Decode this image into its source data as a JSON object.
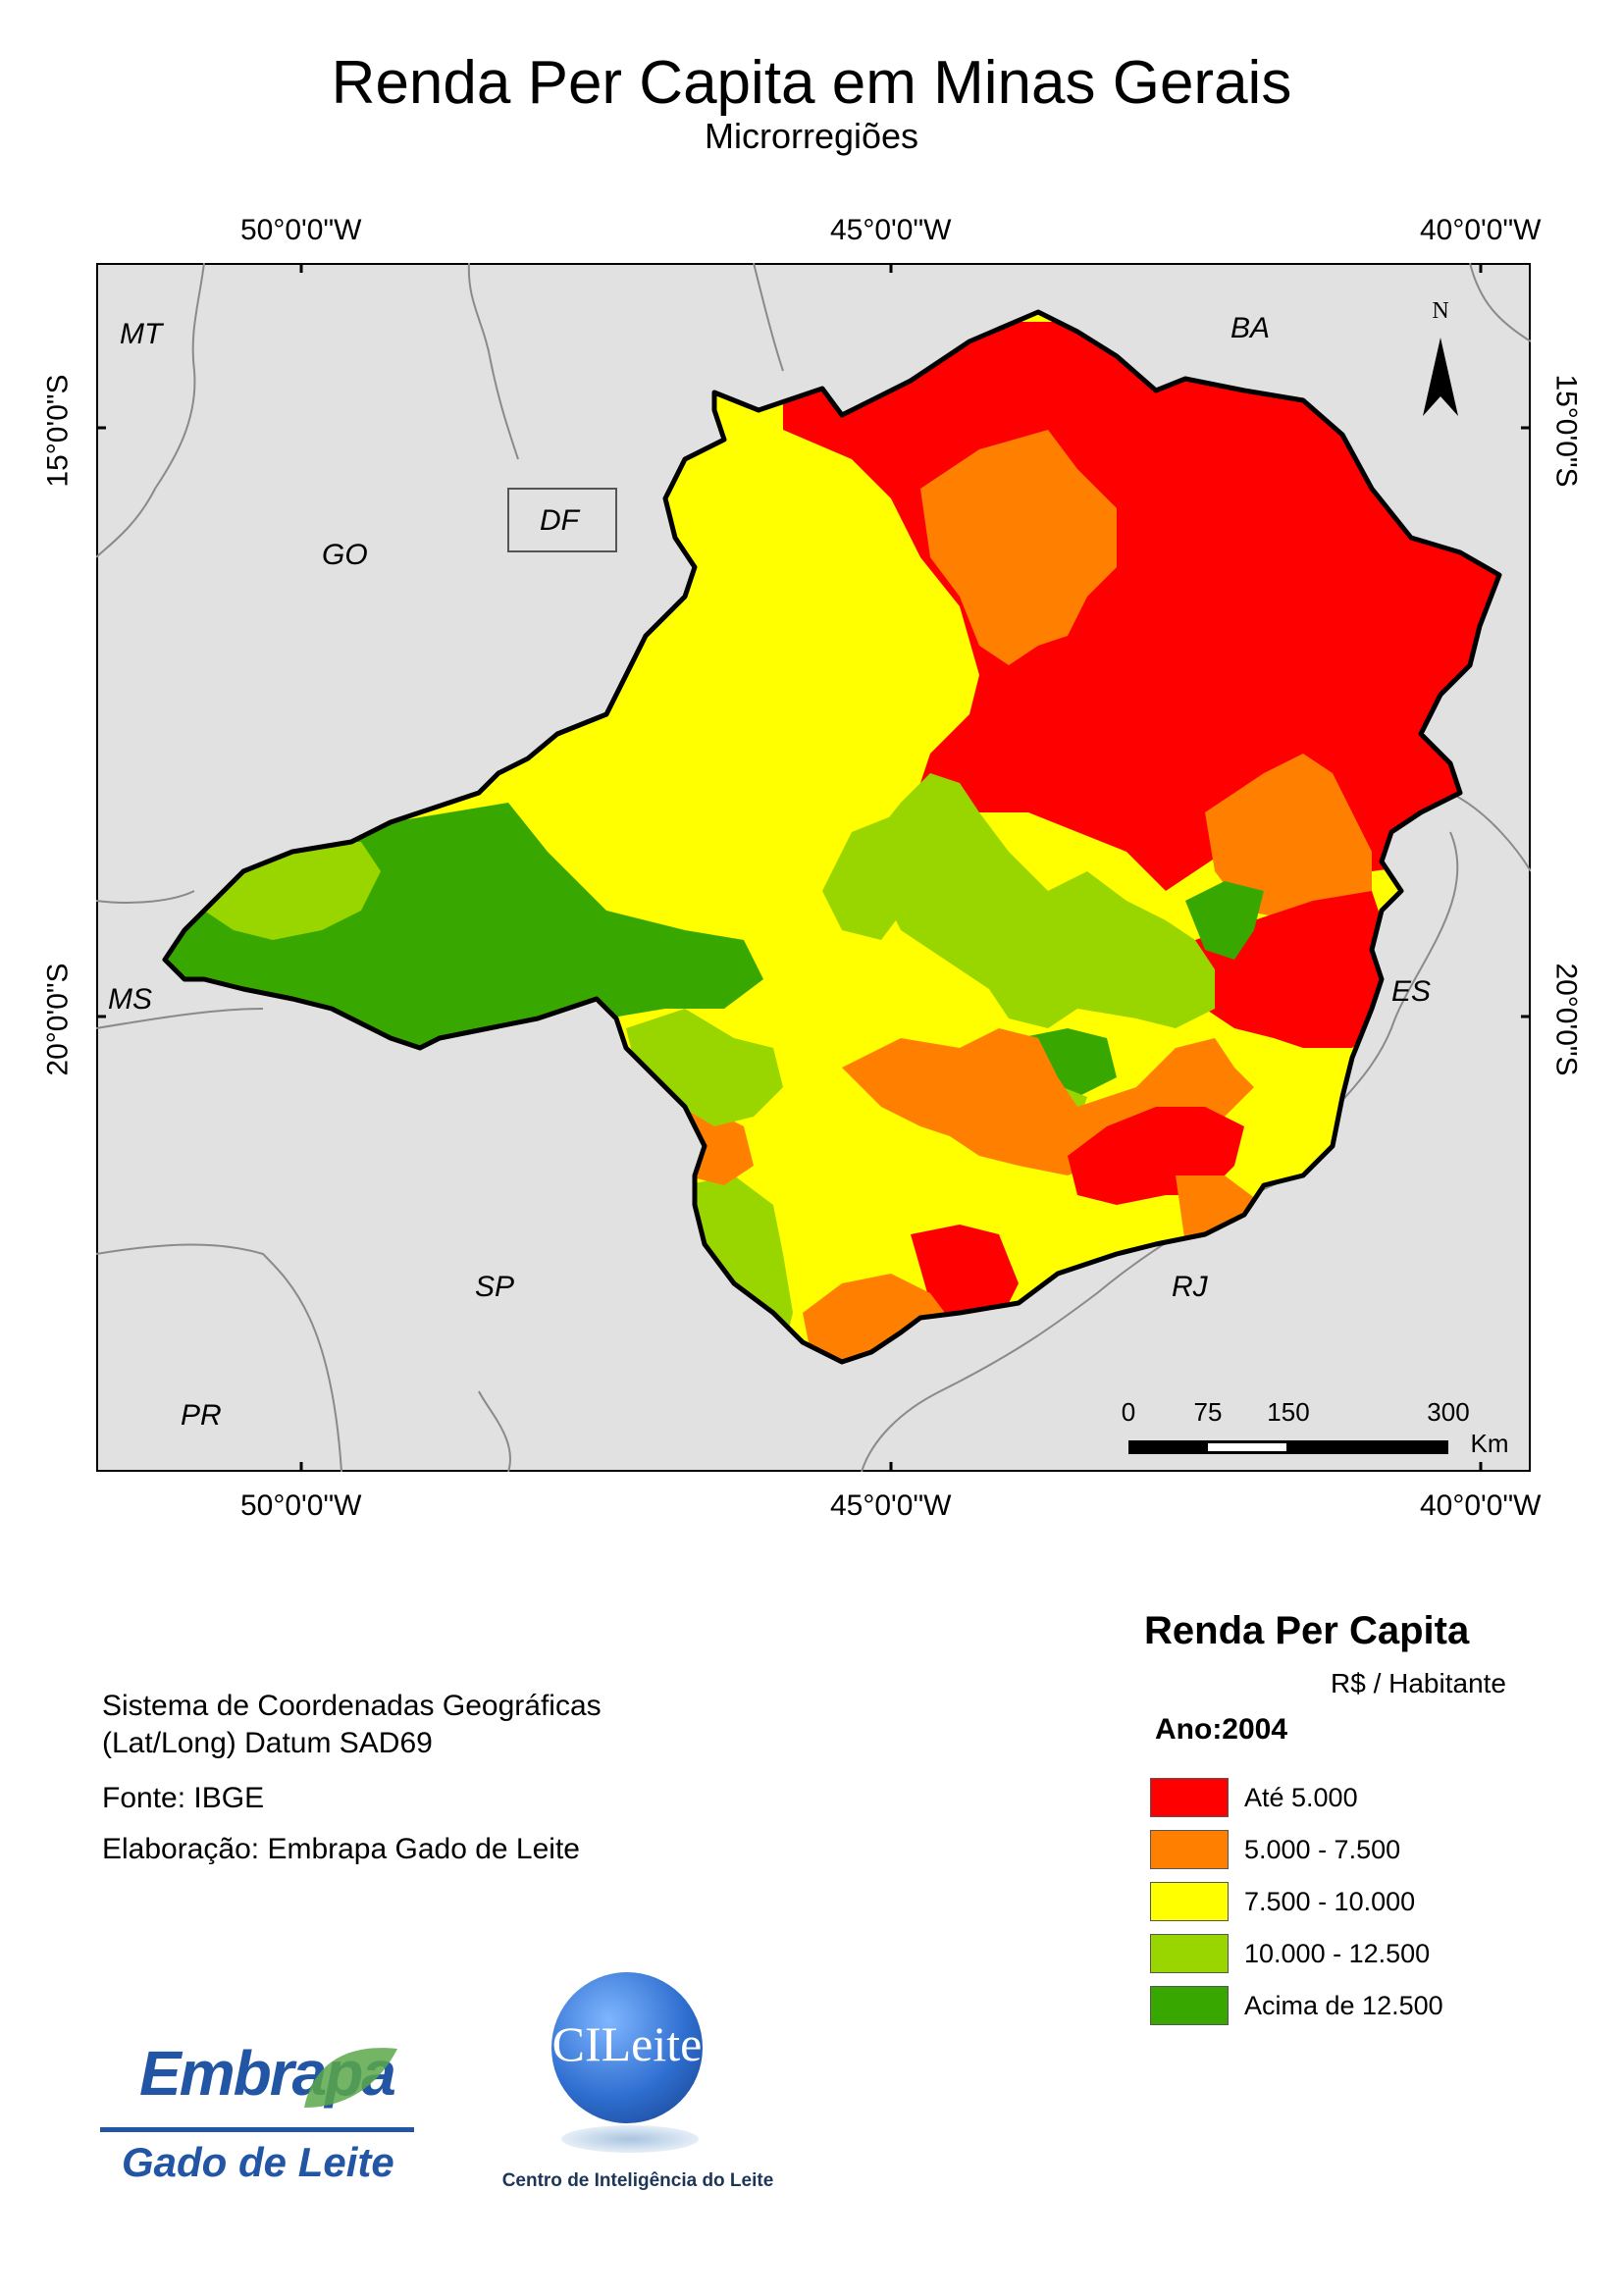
{
  "title": "Renda Per Capita em Minas Gerais",
  "subtitle": "Microrregiões",
  "graticule": {
    "lon_top": [
      "50°0'0\"W",
      "45°0'0\"W",
      "40°0'0\"W"
    ],
    "lon_bottom": [
      "50°0'0\"W",
      "45°0'0\"W",
      "40°0'0\"W"
    ],
    "lat_left": [
      "15°0'0\"S",
      "20°0'0\"S"
    ],
    "lat_right": [
      "15°0'0\"S",
      "20°0'0\"S"
    ]
  },
  "state_labels": [
    "MT",
    "BA",
    "GO",
    "DF",
    "MS",
    "ES",
    "SP",
    "RJ",
    "PR"
  ],
  "north_arrow": "N",
  "scale_bar": {
    "ticks": [
      "0",
      "75",
      "150",
      "300"
    ],
    "unit": "Km"
  },
  "info": {
    "coords_line1": "Sistema de Coordenadas Geográficas",
    "coords_line2": "(Lat/Long) Datum SAD69",
    "source": "Fonte: IBGE",
    "author": "Elaboração: Embrapa Gado de Leite"
  },
  "legend": {
    "title": "Renda Per Capita",
    "unit": "R$ / Habitante",
    "year": "Ano:2004",
    "classes": [
      {
        "label": "Até 5.000",
        "color": "#ff0000"
      },
      {
        "label": "5.000 - 7.500",
        "color": "#ff8000"
      },
      {
        "label": "7.500 - 10.000",
        "color": "#ffff00"
      },
      {
        "label": "10.000 - 12.500",
        "color": "#99d600"
      },
      {
        "label": "Acima de 12.500",
        "color": "#38a800"
      }
    ]
  },
  "logos": {
    "embrapa_word": "Embrapa",
    "embrapa_sub": "Gado de Leite",
    "cileite_word": "CILeite",
    "cileite_sub": "Centro de Inteligência do Leite"
  }
}
